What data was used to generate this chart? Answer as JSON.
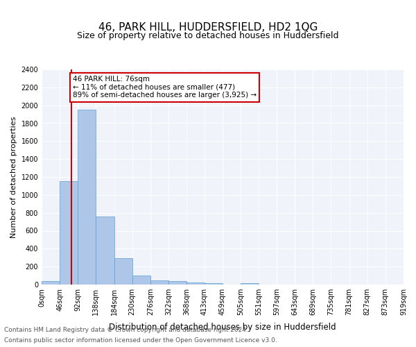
{
  "title": "46, PARK HILL, HUDDERSFIELD, HD2 1QG",
  "subtitle": "Size of property relative to detached houses in Huddersfield",
  "xlabel": "Distribution of detached houses by size in Huddersfield",
  "ylabel": "Number of detached properties",
  "footer_line1": "Contains HM Land Registry data © Crown copyright and database right 2024.",
  "footer_line2": "Contains public sector information licensed under the Open Government Licence v3.0.",
  "bin_labels": [
    "0sqm",
    "46sqm",
    "92sqm",
    "138sqm",
    "184sqm",
    "230sqm",
    "276sqm",
    "322sqm",
    "368sqm",
    "413sqm",
    "459sqm",
    "505sqm",
    "551sqm",
    "597sqm",
    "643sqm",
    "689sqm",
    "735sqm",
    "781sqm",
    "827sqm",
    "873sqm",
    "919sqm"
  ],
  "bin_edges": [
    0,
    46,
    92,
    138,
    184,
    230,
    276,
    322,
    368,
    413,
    459,
    505,
    551,
    597,
    643,
    689,
    735,
    781,
    827,
    873,
    919
  ],
  "bar_values": [
    40,
    1150,
    1950,
    760,
    295,
    100,
    45,
    35,
    25,
    15,
    0,
    15,
    0,
    0,
    0,
    0,
    0,
    0,
    0,
    0
  ],
  "bar_color": "#aec6e8",
  "bar_edge_color": "#5a9fd4",
  "property_line_x": 76,
  "property_line_color": "#cc0000",
  "annotation_text": "46 PARK HILL: 76sqm\n← 11% of detached houses are smaller (477)\n89% of semi-detached houses are larger (3,925) →",
  "annotation_box_color": "#cc0000",
  "ylim": [
    0,
    2400
  ],
  "yticks": [
    0,
    200,
    400,
    600,
    800,
    1000,
    1200,
    1400,
    1600,
    1800,
    2000,
    2200,
    2400
  ],
  "background_color": "#f0f4fa",
  "grid_color": "#ffffff",
  "title_fontsize": 11,
  "subtitle_fontsize": 9,
  "axis_label_fontsize": 8,
  "tick_fontsize": 7,
  "footer_fontsize": 6.5
}
